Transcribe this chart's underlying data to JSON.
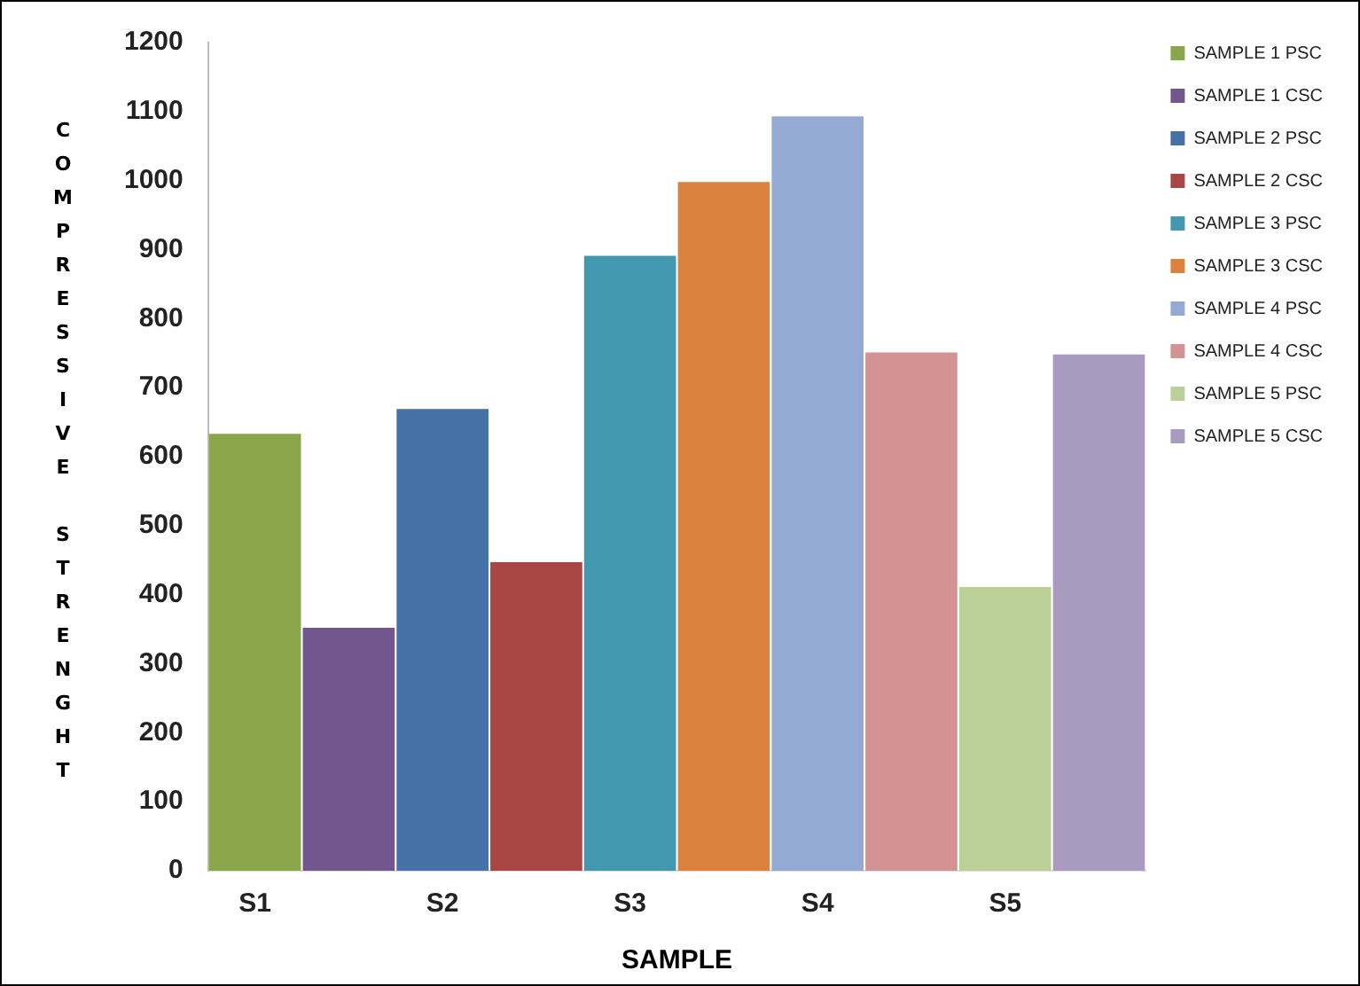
{
  "chart_data": {
    "type": "bar",
    "xlabel": "SAMPLE",
    "ylabel": "COMPRESSIVE STRENGHT",
    "categories": [
      "S1",
      null,
      "S2",
      null,
      "S3",
      null,
      "S4",
      null,
      "S5",
      null
    ],
    "ylim": [
      0,
      1200
    ],
    "yticks": [
      0,
      100,
      200,
      300,
      400,
      500,
      600,
      700,
      800,
      900,
      1000,
      1100,
      1200
    ],
    "grid": false,
    "legend": "top right",
    "series": [
      {
        "name": "SAMPLE 1 PSC",
        "color": "#8aa64c",
        "values": [
          633,
          null,
          null,
          null,
          null,
          null,
          null,
          null,
          null,
          null
        ]
      },
      {
        "name": "SAMPLE 1 CSC",
        "color": "#72578e",
        "values": [
          null,
          352,
          null,
          null,
          null,
          null,
          null,
          null,
          null,
          null
        ]
      },
      {
        "name": "SAMPLE 2 PSC",
        "color": "#4571a6",
        "values": [
          null,
          null,
          669,
          null,
          null,
          null,
          null,
          null,
          null,
          null
        ]
      },
      {
        "name": "SAMPLE 2 CSC",
        "color": "#a84644",
        "values": [
          null,
          null,
          null,
          447,
          null,
          null,
          null,
          null,
          null,
          null
        ]
      },
      {
        "name": "SAMPLE 3 PSC",
        "color": "#4299af",
        "values": [
          null,
          null,
          null,
          null,
          891,
          null,
          null,
          null,
          null,
          null
        ]
      },
      {
        "name": "SAMPLE 3 CSC",
        "color": "#db833e",
        "values": [
          null,
          null,
          null,
          null,
          null,
          998,
          null,
          null,
          null,
          null
        ]
      },
      {
        "name": "SAMPLE 4 PSC",
        "color": "#95aad2",
        "values": [
          null,
          null,
          null,
          null,
          null,
          null,
          1093,
          null,
          null,
          null
        ]
      },
      {
        "name": "SAMPLE 4 CSC",
        "color": "#d39392",
        "values": [
          null,
          null,
          null,
          null,
          null,
          null,
          null,
          751,
          null,
          null
        ]
      },
      {
        "name": "SAMPLE 5 PSC",
        "color": "#bad096",
        "values": [
          null,
          null,
          null,
          null,
          null,
          null,
          null,
          null,
          411,
          null
        ]
      },
      {
        "name": "SAMPLE 5 CSC",
        "color": "#a99bbf",
        "values": [
          null,
          null,
          null,
          null,
          null,
          null,
          null,
          null,
          null,
          748
        ]
      }
    ]
  }
}
